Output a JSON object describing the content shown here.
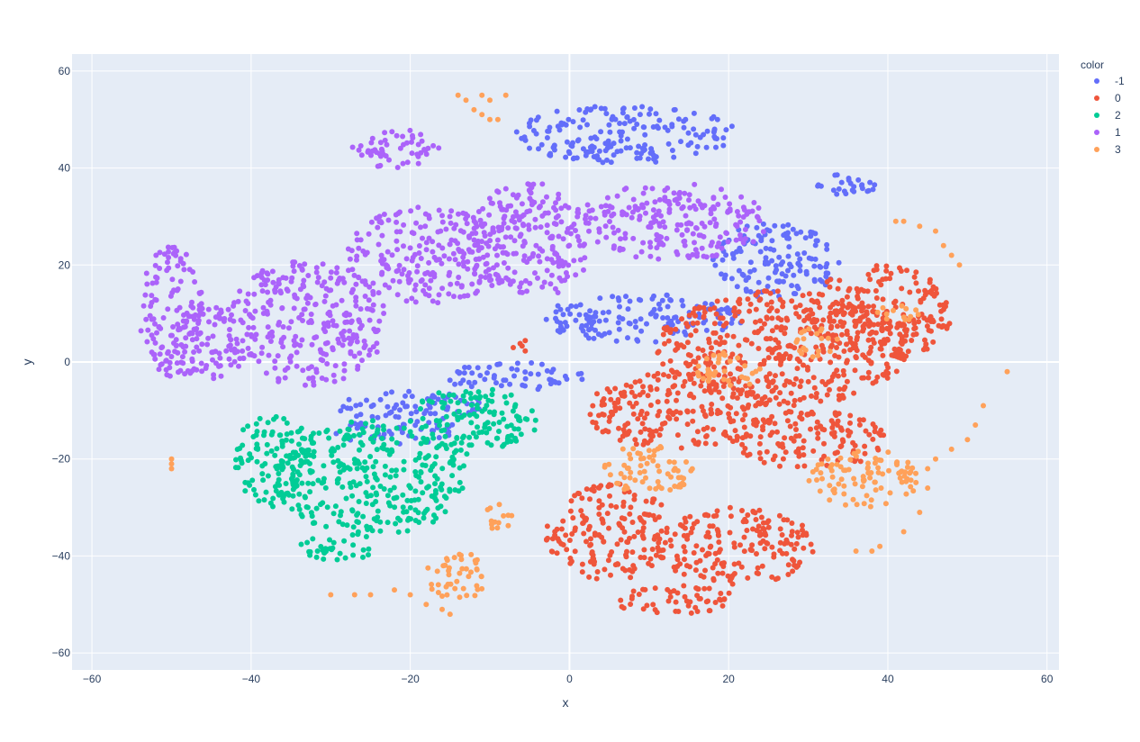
{
  "chart_data": {
    "type": "scatter",
    "title": "",
    "xlabel": "x",
    "ylabel": "y",
    "xlim": [
      -62.5,
      61.5
    ],
    "ylim": [
      -63.5,
      63.5
    ],
    "x_ticks": [
      -60,
      -40,
      -20,
      0,
      20,
      40,
      60
    ],
    "y_ticks": [
      -60,
      -40,
      -20,
      0,
      20,
      40,
      60
    ],
    "x_tick_labels": [
      "−60",
      "−40",
      "−20",
      "0",
      "20",
      "40",
      "60"
    ],
    "y_tick_labels": [
      "−60",
      "−40",
      "−20",
      "0",
      "20",
      "40",
      "60"
    ],
    "grid": true,
    "plot_background": "#e5ecf6",
    "legend": {
      "title": "color",
      "placement": "top-right outside",
      "entries": [
        "-1",
        "0",
        "2",
        "1",
        "3"
      ]
    },
    "series": [
      {
        "name": "-1",
        "color": "#636efa",
        "regions": [
          {
            "cx": 7,
            "cy": 47,
            "rx": 14,
            "ry": 6
          },
          {
            "cx": 26,
            "cy": 21,
            "rx": 8,
            "ry": 8
          },
          {
            "cx": 35,
            "cy": 37,
            "rx": 4,
            "ry": 3
          },
          {
            "cx": 9,
            "cy": 9,
            "rx": 13,
            "ry": 5
          },
          {
            "cx": -7,
            "cy": -3,
            "rx": 9,
            "ry": 3
          },
          {
            "cx": -20,
            "cy": -9,
            "rx": 10,
            "ry": 3
          },
          {
            "cx": -22,
            "cy": -14,
            "rx": 8,
            "ry": 3
          }
        ]
      },
      {
        "name": "0",
        "color": "#ef553b",
        "regions": [
          {
            "cx": 27,
            "cy": 3,
            "rx": 16,
            "ry": 12
          },
          {
            "cx": 39,
            "cy": 10,
            "rx": 9,
            "ry": 10
          },
          {
            "cx": 14,
            "cy": -10,
            "rx": 12,
            "ry": 8
          },
          {
            "cx": 30,
            "cy": -16,
            "rx": 10,
            "ry": 6
          },
          {
            "cx": 5,
            "cy": -35,
            "rx": 8,
            "ry": 10
          },
          {
            "cx": 21,
            "cy": -38,
            "rx": 10,
            "ry": 8
          },
          {
            "cx": 13,
            "cy": -49,
            "rx": 8,
            "ry": 3
          },
          {
            "cx": -6,
            "cy": 3,
            "rx": 1.5,
            "ry": 1.5
          }
        ]
      },
      {
        "name": "2",
        "color": "#00cc96",
        "regions": [
          {
            "cx": -12,
            "cy": -12,
            "rx": 8,
            "ry": 7
          },
          {
            "cx": -25,
            "cy": -24,
            "rx": 12,
            "ry": 12
          },
          {
            "cx": -37,
            "cy": -20,
            "rx": 5,
            "ry": 10
          },
          {
            "cx": -29,
            "cy": -38,
            "rx": 5,
            "ry": 3
          }
        ]
      },
      {
        "name": "1",
        "color": "#ab63fa",
        "regions": [
          {
            "cx": -33,
            "cy": 8,
            "rx": 10,
            "ry": 13
          },
          {
            "cx": -18,
            "cy": 22,
            "rx": 10,
            "ry": 10
          },
          {
            "cx": -5,
            "cy": 25,
            "rx": 8,
            "ry": 12
          },
          {
            "cx": 13,
            "cy": 29,
            "rx": 12,
            "ry": 8
          },
          {
            "cx": -22,
            "cy": 44,
            "rx": 6,
            "ry": 4
          },
          {
            "cx": -45,
            "cy": 4,
            "rx": 5,
            "ry": 8
          },
          {
            "cx": -50,
            "cy": 10,
            "rx": 4,
            "ry": 14
          }
        ]
      },
      {
        "name": "3",
        "color": "#ffa15a",
        "regions": [
          {
            "cx": 10,
            "cy": -22,
            "rx": 6,
            "ry": 5
          },
          {
            "cx": 37,
            "cy": -24,
            "rx": 7,
            "ry": 6
          },
          {
            "cx": 31,
            "cy": 4,
            "rx": 3,
            "ry": 3
          },
          {
            "cx": 41,
            "cy": 10,
            "rx": 3,
            "ry": 2
          },
          {
            "cx": 20,
            "cy": -2,
            "rx": 4,
            "ry": 4
          },
          {
            "cx": -14,
            "cy": -44,
            "rx": 4,
            "ry": 5
          },
          {
            "cx": -9,
            "cy": -32,
            "rx": 2,
            "ry": 3
          }
        ],
        "points": [
          [
            -50,
            -20
          ],
          [
            -50,
            -21
          ],
          [
            -50,
            -22
          ],
          [
            -14,
            55
          ],
          [
            -13,
            54
          ],
          [
            -11,
            55
          ],
          [
            -10,
            54
          ],
          [
            -8,
            55
          ],
          [
            -12,
            52
          ],
          [
            -11,
            51
          ],
          [
            -10,
            50
          ],
          [
            -9,
            50
          ],
          [
            41,
            29
          ],
          [
            42,
            29
          ],
          [
            44,
            28
          ],
          [
            46,
            27
          ],
          [
            47,
            24
          ],
          [
            48,
            22
          ],
          [
            49,
            20
          ],
          [
            55,
            -2
          ],
          [
            52,
            -9
          ],
          [
            51,
            -13
          ],
          [
            50,
            -16
          ],
          [
            48,
            -18
          ],
          [
            46,
            -20
          ],
          [
            45,
            -22
          ],
          [
            45,
            -26
          ],
          [
            44,
            -31
          ],
          [
            42,
            -35
          ],
          [
            39,
            -38
          ],
          [
            38,
            -39
          ],
          [
            36,
            -39
          ],
          [
            -30,
            -48
          ],
          [
            -27,
            -48
          ],
          [
            -25,
            -48
          ],
          [
            -22,
            -47
          ],
          [
            -20,
            -48
          ],
          [
            -18,
            -50
          ],
          [
            -16,
            -51
          ],
          [
            -15,
            -52
          ]
        ]
      }
    ]
  }
}
